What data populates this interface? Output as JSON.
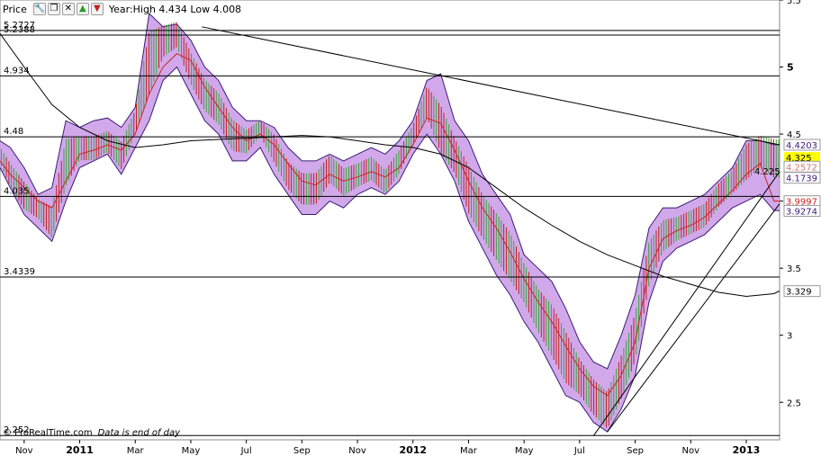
{
  "toolbar": {
    "title": "Price",
    "year_range": "Year:High 4.434 Low 4.008",
    "icons": [
      "wrench-icon",
      "window-icon",
      "close-icon",
      "move-up-icon",
      "move-down-icon"
    ]
  },
  "footer": {
    "brand": "© ProRealTime.com",
    "note": "Data is end of day"
  },
  "chart_data": {
    "type": "line",
    "ylim": [
      2.22,
      5.5
    ],
    "y_ticks": [
      2.5,
      3,
      3.5,
      4,
      4.5,
      5,
      5.5
    ],
    "y_tick_labels": [
      "2.5",
      "3",
      "3.5",
      "4",
      "4.5",
      "5",
      "5.5"
    ],
    "x_ticks": [
      {
        "label": "Nov",
        "bold": false,
        "t": 0
      },
      {
        "label": "2011",
        "bold": true,
        "t": 2
      },
      {
        "label": "Mar",
        "bold": false,
        "t": 4
      },
      {
        "label": "May",
        "bold": false,
        "t": 6
      },
      {
        "label": "Jul",
        "bold": false,
        "t": 8
      },
      {
        "label": "Sep",
        "bold": false,
        "t": 10
      },
      {
        "label": "Nov",
        "bold": false,
        "t": 12
      },
      {
        "label": "2012",
        "bold": true,
        "t": 14
      },
      {
        "label": "Mar",
        "bold": false,
        "t": 16
      },
      {
        "label": "May",
        "bold": false,
        "t": 18
      },
      {
        "label": "Jul",
        "bold": false,
        "t": 20
      },
      {
        "label": "Sep",
        "bold": false,
        "t": 22
      },
      {
        "label": "Nov",
        "bold": false,
        "t": 24
      },
      {
        "label": "2013",
        "bold": true,
        "t": 26
      }
    ],
    "x_range": [
      -0.87,
      27.2
    ],
    "horizontal_levels": [
      {
        "value": 5.2727,
        "label": "5.2727"
      },
      {
        "value": 5.2388,
        "label": "5.2388"
      },
      {
        "value": 4.934,
        "label": "4.934"
      },
      {
        "value": 4.48,
        "label": "4.48"
      },
      {
        "value": 4.225,
        "label": "4.225"
      },
      {
        "value": 4.035,
        "label": "4.035"
      },
      {
        "value": 3.4339,
        "label": "3.4339"
      },
      {
        "value": 2.252,
        "label": "2.252"
      }
    ],
    "right_labels": [
      {
        "value": 4.4203,
        "label": "4.4203",
        "color": "#3a1b78",
        "fill": "#ffffff"
      },
      {
        "value": 4.325,
        "label": "4.325",
        "color": "#000000",
        "fill": "#ffff00"
      },
      {
        "value": 4.2572,
        "label": "4.2572",
        "color": "#d07878",
        "fill": "#ffffff"
      },
      {
        "value": 4.1739,
        "label": "4.1739",
        "color": "#3a1b78",
        "fill": "#ffffff"
      },
      {
        "value": 3.9997,
        "label": "3.9997",
        "color": "#d02020",
        "fill": "#ffffff"
      },
      {
        "value": 3.9274,
        "label": "3.9274",
        "color": "#3a1b78",
        "fill": "#ffffff"
      },
      {
        "value": 3.329,
        "label": "3.329",
        "color": "#000000",
        "fill": "#ffffff"
      }
    ],
    "series": [
      {
        "role": "price",
        "x": [
          -0.87,
          -0.5,
          0,
          0.5,
          1,
          1.5,
          2,
          2.5,
          3,
          3.5,
          4,
          4.5,
          5,
          5.5,
          6,
          6.5,
          7,
          7.5,
          8,
          8.5,
          9,
          9.5,
          10,
          10.5,
          11,
          11.5,
          12,
          12.5,
          13,
          13.5,
          14,
          14.5,
          15,
          15.5,
          16,
          16.5,
          17,
          17.5,
          18,
          18.5,
          19,
          19.5,
          20,
          20.5,
          21,
          21.5,
          22,
          22.5,
          23,
          23.5,
          24,
          24.5,
          25,
          25.5,
          26,
          26.5,
          27,
          27.2
        ],
        "values": [
          4.35,
          4.2,
          4.05,
          3.95,
          3.85,
          4.3,
          4.4,
          4.4,
          4.45,
          4.35,
          4.6,
          5.05,
          5.2,
          5.25,
          5.0,
          4.8,
          4.7,
          4.5,
          4.45,
          4.55,
          4.4,
          4.2,
          4.1,
          4.1,
          4.25,
          4.15,
          4.2,
          4.25,
          4.15,
          4.3,
          4.5,
          4.75,
          4.55,
          4.35,
          4.1,
          3.9,
          3.75,
          3.6,
          3.4,
          3.2,
          3.05,
          2.85,
          2.7,
          2.55,
          2.45,
          2.7,
          3.0,
          3.55,
          3.75,
          3.8,
          3.85,
          3.9,
          4.05,
          4.15,
          4.3,
          4.38,
          4.33,
          4.33
        ]
      },
      {
        "role": "band-upper",
        "x": [
          -0.87,
          -0.5,
          0,
          0.5,
          1,
          1.5,
          2,
          2.5,
          3,
          3.5,
          4,
          4.5,
          5,
          5.5,
          6,
          6.5,
          7,
          7.5,
          8,
          8.5,
          9,
          9.5,
          10,
          10.5,
          11,
          11.5,
          12,
          12.5,
          13,
          13.5,
          14,
          14.5,
          15,
          15.5,
          16,
          16.5,
          17,
          17.5,
          18,
          18.5,
          19,
          19.5,
          20,
          20.5,
          21,
          21.5,
          22,
          22.5,
          23,
          23.5,
          24,
          24.5,
          25,
          25.5,
          26,
          26.5,
          27,
          27.2
        ],
        "values": [
          4.45,
          4.4,
          4.25,
          4.05,
          4.1,
          4.6,
          4.55,
          4.6,
          4.62,
          4.55,
          4.7,
          5.4,
          5.3,
          5.32,
          5.2,
          5.0,
          4.9,
          4.7,
          4.6,
          4.6,
          4.55,
          4.4,
          4.3,
          4.3,
          4.35,
          4.3,
          4.35,
          4.4,
          4.35,
          4.45,
          4.6,
          4.9,
          4.95,
          4.6,
          4.45,
          4.2,
          4.05,
          3.9,
          3.6,
          3.5,
          3.4,
          3.2,
          2.95,
          2.8,
          2.75,
          3.0,
          3.3,
          3.8,
          3.95,
          3.95,
          4.0,
          4.05,
          4.15,
          4.25,
          4.45,
          4.45,
          4.42,
          4.42
        ]
      },
      {
        "role": "band-lower",
        "x": [
          -0.87,
          -0.5,
          0,
          0.5,
          1,
          1.5,
          2,
          2.5,
          3,
          3.5,
          4,
          4.5,
          5,
          5.5,
          6,
          6.5,
          7,
          7.5,
          8,
          8.5,
          9,
          9.5,
          10,
          10.5,
          11,
          11.5,
          12,
          12.5,
          13,
          13.5,
          14,
          14.5,
          15,
          15.5,
          16,
          16.5,
          17,
          17.5,
          18,
          18.5,
          19,
          19.5,
          20,
          20.5,
          21,
          21.5,
          22,
          22.5,
          23,
          23.5,
          24,
          24.5,
          25,
          25.5,
          26,
          26.5,
          27,
          27.2
        ],
        "values": [
          4.25,
          4.1,
          3.9,
          3.8,
          3.7,
          4.0,
          4.25,
          4.3,
          4.35,
          4.2,
          4.4,
          4.6,
          4.9,
          5.0,
          4.8,
          4.6,
          4.5,
          4.3,
          4.3,
          4.4,
          4.2,
          4.05,
          3.9,
          3.9,
          4.0,
          3.95,
          4.05,
          4.1,
          4.05,
          4.15,
          4.35,
          4.5,
          4.35,
          4.15,
          3.85,
          3.65,
          3.45,
          3.3,
          3.1,
          2.95,
          2.75,
          2.55,
          2.5,
          2.35,
          2.28,
          2.45,
          2.7,
          3.25,
          3.55,
          3.65,
          3.7,
          3.75,
          3.85,
          3.95,
          4.0,
          4.05,
          3.93,
          3.93
        ]
      },
      {
        "role": "ma-short",
        "color": "#d02020",
        "x": [
          -0.87,
          -0.5,
          0,
          0.5,
          1,
          1.5,
          2,
          2.5,
          3,
          3.5,
          4,
          4.5,
          5,
          5.5,
          6,
          6.5,
          7,
          7.5,
          8,
          8.5,
          9,
          9.5,
          10,
          10.5,
          11,
          11.5,
          12,
          12.5,
          13,
          13.5,
          14,
          14.5,
          15,
          15.5,
          16,
          16.5,
          17,
          17.5,
          18,
          18.5,
          19,
          19.5,
          20,
          20.5,
          21,
          21.5,
          22,
          22.5,
          23,
          23.5,
          24,
          24.5,
          25,
          25.5,
          26,
          26.5,
          27,
          27.2
        ],
        "values": [
          4.3,
          4.2,
          4.1,
          4.0,
          3.95,
          4.15,
          4.35,
          4.38,
          4.42,
          4.38,
          4.5,
          4.8,
          5.0,
          5.1,
          5.05,
          4.85,
          4.7,
          4.55,
          4.45,
          4.5,
          4.42,
          4.28,
          4.15,
          4.12,
          4.2,
          4.15,
          4.18,
          4.22,
          4.18,
          4.25,
          4.42,
          4.62,
          4.58,
          4.38,
          4.15,
          3.95,
          3.8,
          3.62,
          3.42,
          3.25,
          3.1,
          2.92,
          2.75,
          2.62,
          2.55,
          2.7,
          2.95,
          3.5,
          3.72,
          3.78,
          3.82,
          3.88,
          3.98,
          4.08,
          4.2,
          4.28,
          4.0,
          4.0
        ]
      },
      {
        "role": "ma-long",
        "color": "#000000",
        "x": [
          -0.87,
          0,
          1,
          2,
          3,
          4,
          5,
          6,
          7,
          8,
          9,
          10,
          11,
          12,
          13,
          14,
          15,
          16,
          17,
          18,
          19,
          20,
          21,
          22,
          23,
          24,
          25,
          26,
          27,
          27.2
        ],
        "values": [
          5.25,
          5.0,
          4.72,
          4.55,
          4.45,
          4.4,
          4.42,
          4.45,
          4.46,
          4.47,
          4.48,
          4.49,
          4.48,
          4.45,
          4.42,
          4.4,
          4.35,
          4.25,
          4.1,
          3.95,
          3.82,
          3.7,
          3.6,
          3.52,
          3.44,
          3.38,
          3.32,
          3.29,
          3.31,
          3.33
        ]
      }
    ],
    "trendlines": [
      {
        "x": [
          6.4,
          27.2
        ],
        "values": [
          5.3,
          4.42
        ]
      },
      {
        "x": [
          20.5,
          27.2
        ],
        "values": [
          2.25,
          4.22
        ]
      },
      {
        "x": [
          21.0,
          27.2
        ],
        "values": [
          2.28,
          3.98
        ]
      }
    ]
  }
}
